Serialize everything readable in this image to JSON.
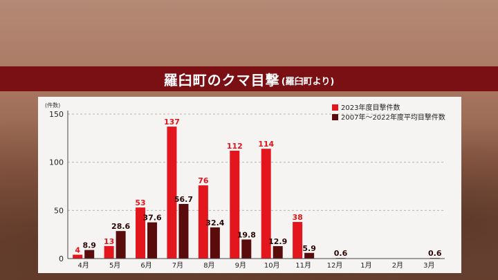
{
  "header": {
    "title": "羅臼町のクマ目撃",
    "subtitle": "(羅臼町より)"
  },
  "colors": {
    "series_2023": "#e2161c",
    "series_avg": "#5a0c0c",
    "title_bar": "#7a0f14"
  },
  "chart_data": {
    "type": "bar",
    "unit_label": "(件数)",
    "categories": [
      "4月",
      "5月",
      "6月",
      "7月",
      "8月",
      "9月",
      "10月",
      "11月",
      "12月",
      "1月",
      "2月",
      "3月"
    ],
    "ylim": [
      0,
      150
    ],
    "yticks": [
      0,
      50,
      100,
      150
    ],
    "grid": true,
    "legend_position": "top-right",
    "series": [
      {
        "name": "2023年度目撃件数",
        "color": "#e2161c",
        "values": [
          4,
          13,
          53,
          137,
          76,
          112,
          114,
          38,
          null,
          null,
          null,
          null
        ],
        "labels": [
          "4",
          "13",
          "53",
          "137",
          "76",
          "112",
          "114",
          "38",
          "",
          "",
          "",
          ""
        ]
      },
      {
        "name": "2007年～2022年度平均目撃件数",
        "color": "#5a0c0c",
        "values": [
          8.9,
          28.6,
          37.6,
          56.7,
          32.4,
          19.8,
          12.9,
          5.9,
          0.6,
          null,
          null,
          0.6
        ],
        "labels": [
          "8.9",
          "28.6",
          "37.6",
          "56.7",
          "32.4",
          "19.8",
          "12.9",
          "5.9",
          "0.6",
          "",
          "",
          "0.6"
        ]
      }
    ]
  }
}
